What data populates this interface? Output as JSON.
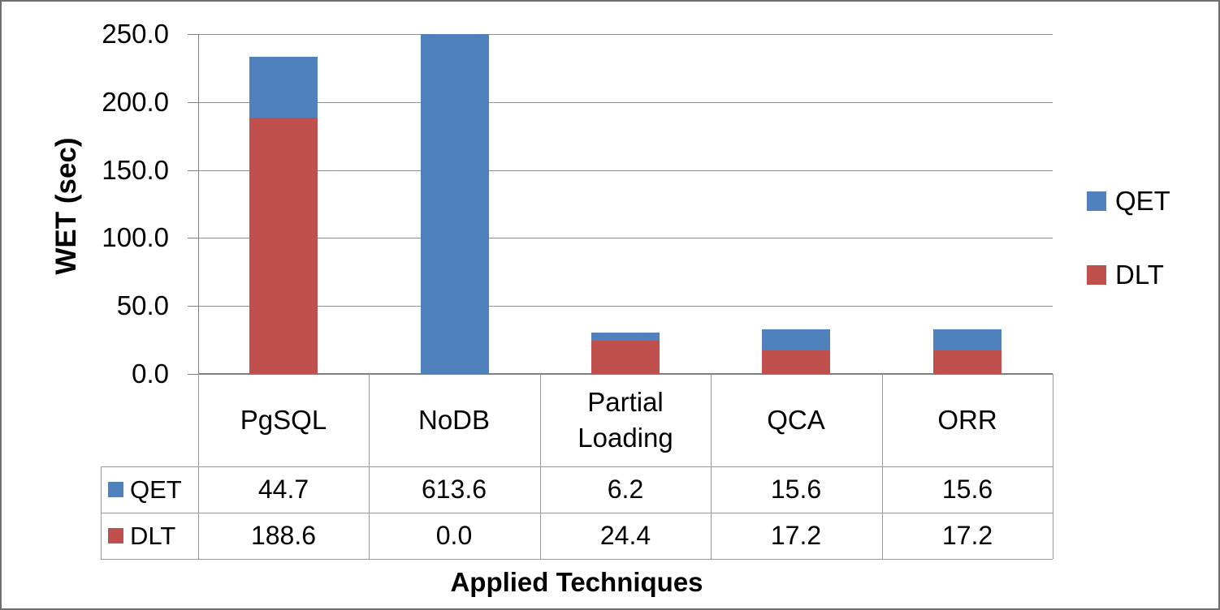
{
  "chart_data": {
    "type": "bar",
    "stacked": true,
    "categories": [
      "PgSQL",
      "NoDB",
      "Partial Loading",
      "QCA",
      "ORR"
    ],
    "series": [
      {
        "name": "QET",
        "color": "#4F81BD",
        "values": [
          44.7,
          613.6,
          6.2,
          15.6,
          15.6
        ]
      },
      {
        "name": "DLT",
        "color": "#C0504D",
        "values": [
          188.6,
          0.0,
          24.4,
          17.2,
          17.2
        ]
      }
    ],
    "stack_order": [
      "DLT",
      "QET"
    ],
    "xlabel": "Applied Techniques",
    "ylabel": "WET (sec)",
    "ylim": [
      0,
      250
    ],
    "ytick_step": 50,
    "ytick_labels": [
      "0.0",
      "50.0",
      "100.0",
      "150.0",
      "200.0",
      "250.0"
    ],
    "grid": true,
    "legend_position": "right",
    "legend_order": [
      "QET",
      "DLT"
    ],
    "data_table_shown": true,
    "value_decimals": 1
  }
}
